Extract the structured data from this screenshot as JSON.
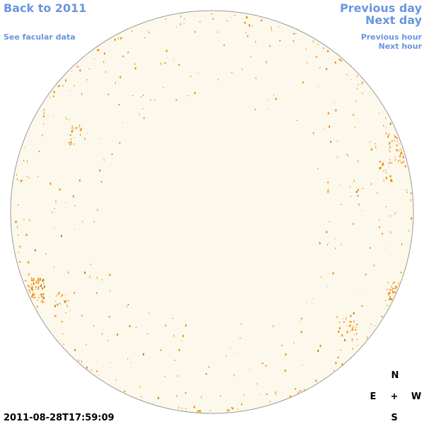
{
  "links": {
    "back": "Back to 2011",
    "facular": "See facular data",
    "previous_day": "Previous day",
    "next_day": "Next day",
    "previous_hour": "Previous hour",
    "next_hour": "Next hour"
  },
  "timestamp": "2011-08-28T17:59:09",
  "compass": {
    "north": "N",
    "east": "E",
    "center": "+",
    "west": "W",
    "south": "S"
  }
}
